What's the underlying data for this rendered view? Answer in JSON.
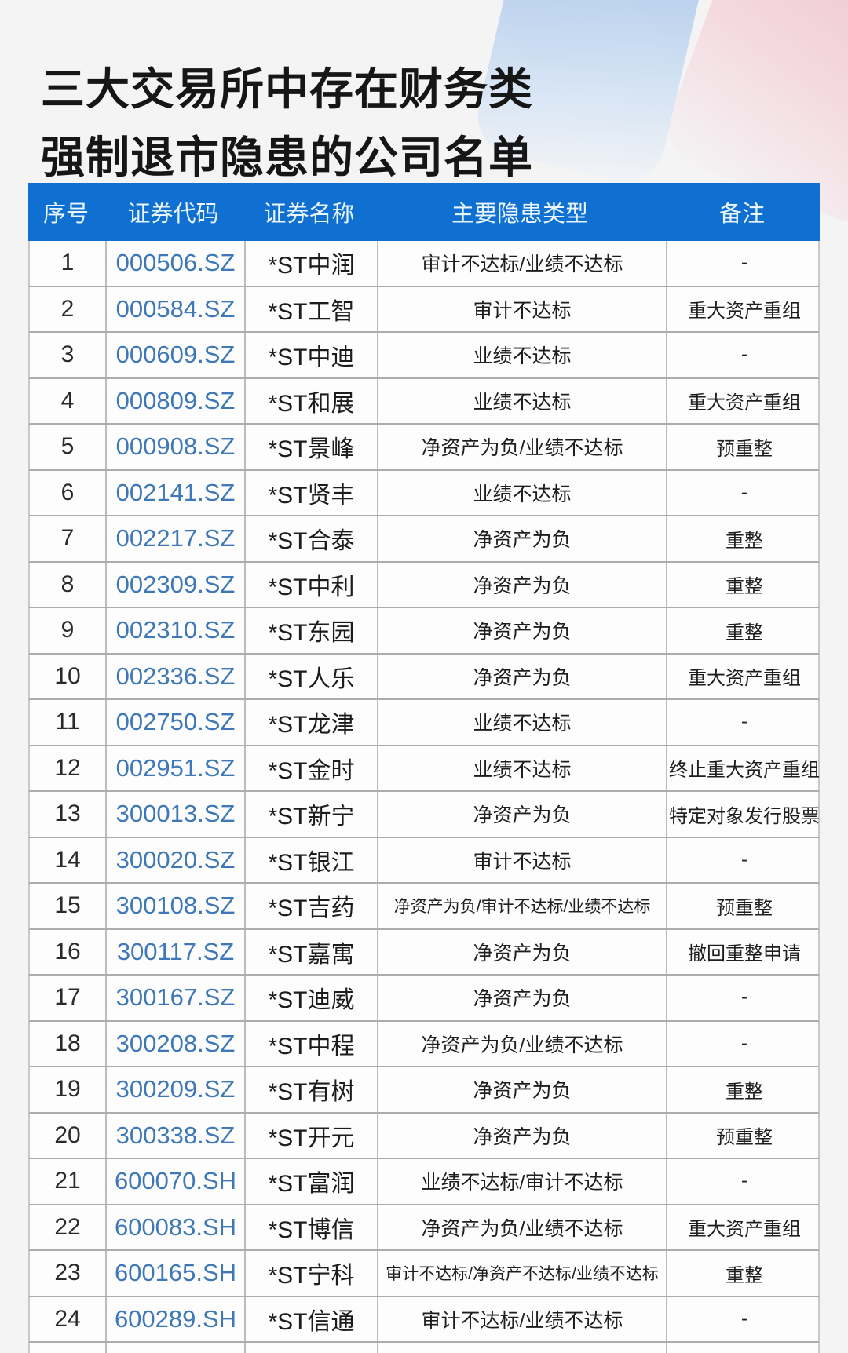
{
  "title": {
    "line1": "三大交易所中存在财务类",
    "line2": "强制退市隐患的公司名单"
  },
  "chart_data": {
    "type": "table",
    "title": "三大交易所中存在财务类强制退市隐患的公司名单",
    "columns": [
      {
        "key": "no",
        "label": "序号"
      },
      {
        "key": "code",
        "label": "证券代码"
      },
      {
        "key": "name",
        "label": "证券名称"
      },
      {
        "key": "risk",
        "label": "主要隐患类型"
      },
      {
        "key": "remark",
        "label": "备注"
      }
    ],
    "rows": [
      {
        "no": "1",
        "code": "000506.SZ",
        "name": "*ST中润",
        "risk": "审计不达标/业绩不达标",
        "remark": "-"
      },
      {
        "no": "2",
        "code": "000584.SZ",
        "name": "*ST工智",
        "risk": "审计不达标",
        "remark": "重大资产重组"
      },
      {
        "no": "3",
        "code": "000609.SZ",
        "name": "*ST中迪",
        "risk": "业绩不达标",
        "remark": "-"
      },
      {
        "no": "4",
        "code": "000809.SZ",
        "name": "*ST和展",
        "risk": "业绩不达标",
        "remark": "重大资产重组"
      },
      {
        "no": "5",
        "code": "000908.SZ",
        "name": "*ST景峰",
        "risk": "净资产为负/业绩不达标",
        "remark": "预重整"
      },
      {
        "no": "6",
        "code": "002141.SZ",
        "name": "*ST贤丰",
        "risk": "业绩不达标",
        "remark": "-"
      },
      {
        "no": "7",
        "code": "002217.SZ",
        "name": "*ST合泰",
        "risk": "净资产为负",
        "remark": "重整"
      },
      {
        "no": "8",
        "code": "002309.SZ",
        "name": "*ST中利",
        "risk": "净资产为负",
        "remark": "重整"
      },
      {
        "no": "9",
        "code": "002310.SZ",
        "name": "*ST东园",
        "risk": "净资产为负",
        "remark": "重整"
      },
      {
        "no": "10",
        "code": "002336.SZ",
        "name": "*ST人乐",
        "risk": "净资产为负",
        "remark": "重大资产重组"
      },
      {
        "no": "11",
        "code": "002750.SZ",
        "name": "*ST龙津",
        "risk": "业绩不达标",
        "remark": "-"
      },
      {
        "no": "12",
        "code": "002951.SZ",
        "name": "*ST金时",
        "risk": "业绩不达标",
        "remark": "终止重大资产重组"
      },
      {
        "no": "13",
        "code": "300013.SZ",
        "name": "*ST新宁",
        "risk": "净资产为负",
        "remark": "特定对象发行股票"
      },
      {
        "no": "14",
        "code": "300020.SZ",
        "name": "*ST银江",
        "risk": "审计不达标",
        "remark": "-"
      },
      {
        "no": "15",
        "code": "300108.SZ",
        "name": "*ST吉药",
        "risk": "净资产为负/审计不达标/业绩不达标",
        "remark": "预重整"
      },
      {
        "no": "16",
        "code": "300117.SZ",
        "name": "*ST嘉寓",
        "risk": "净资产为负",
        "remark": "撤回重整申请"
      },
      {
        "no": "17",
        "code": "300167.SZ",
        "name": "*ST迪威",
        "risk": "净资产为负",
        "remark": "-"
      },
      {
        "no": "18",
        "code": "300208.SZ",
        "name": "*ST中程",
        "risk": "净资产为负/业绩不达标",
        "remark": "-"
      },
      {
        "no": "19",
        "code": "300209.SZ",
        "name": "*ST有树",
        "risk": "净资产为负",
        "remark": "重整"
      },
      {
        "no": "20",
        "code": "300338.SZ",
        "name": "*ST开元",
        "risk": "净资产为负",
        "remark": "预重整"
      },
      {
        "no": "21",
        "code": "600070.SH",
        "name": "*ST富润",
        "risk": "业绩不达标/审计不达标",
        "remark": "-"
      },
      {
        "no": "22",
        "code": "600083.SH",
        "name": "*ST博信",
        "risk": "净资产为负/业绩不达标",
        "remark": "重大资产重组"
      },
      {
        "no": "23",
        "code": "600165.SH",
        "name": "*ST宁科",
        "risk": "审计不达标/净资产不达标/业绩不达标",
        "remark": "重整"
      },
      {
        "no": "24",
        "code": "600289.SH",
        "name": "*ST信通",
        "risk": "审计不达标/业绩不达标",
        "remark": "-"
      }
    ],
    "layout": {
      "header_position": "top",
      "grid": true
    }
  },
  "colors": {
    "header_bg": "#1070d2",
    "header_text": "#e9f5ff",
    "code_text": "#3e78b6",
    "body_text": "#1e1e1e",
    "page_bg": "#f4f4f5",
    "brush_blue": "#b5cdec",
    "brush_pink": "#edc2cb"
  }
}
